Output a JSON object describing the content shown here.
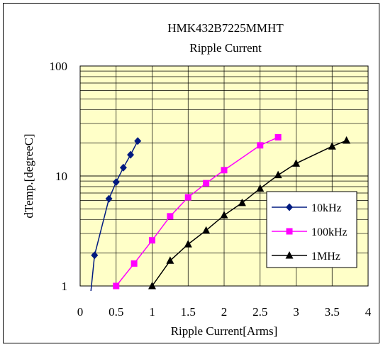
{
  "chart_data": {
    "type": "line",
    "title": "HMK432B7225MMHT",
    "subtitle": "Ripple Current",
    "xlabel": "Ripple Current[Arms]",
    "ylabel": "dTemp.[degreeC]",
    "xlim": [
      0,
      4
    ],
    "ylim": [
      1,
      100
    ],
    "y_scale": "log",
    "x_ticks": [
      "0",
      "0.5",
      "1",
      "1.5",
      "2",
      "2.5",
      "3",
      "3.5",
      "4"
    ],
    "y_ticks": [
      "1",
      "10",
      "100"
    ],
    "plot_background": "#ffffc8",
    "grid": true,
    "legend_position": "right",
    "series": [
      {
        "name": "10kHz",
        "color": "#001a80",
        "marker": "diamond",
        "x": [
          0.15,
          0.2,
          0.4,
          0.5,
          0.6,
          0.7,
          0.8
        ],
        "y": [
          0.9,
          1.9,
          6.2,
          8.8,
          11.9,
          15.6,
          20.8
        ]
      },
      {
        "name": "100kHz",
        "color": "#ff00ff",
        "marker": "square",
        "x": [
          0.5,
          0.75,
          1.0,
          1.25,
          1.5,
          1.75,
          2.0,
          2.5,
          2.75
        ],
        "y": [
          1.0,
          1.6,
          2.6,
          4.3,
          6.4,
          8.6,
          11.3,
          19.0,
          22.5
        ]
      },
      {
        "name": "1MHz",
        "color": "#000000",
        "marker": "triangle",
        "x": [
          1.0,
          1.25,
          1.5,
          1.75,
          2.0,
          2.25,
          2.5,
          2.75,
          3.0,
          3.5,
          3.7
        ],
        "y": [
          1.0,
          1.7,
          2.4,
          3.2,
          4.4,
          5.7,
          7.7,
          10.2,
          13.0,
          18.6,
          21.0
        ]
      }
    ]
  }
}
